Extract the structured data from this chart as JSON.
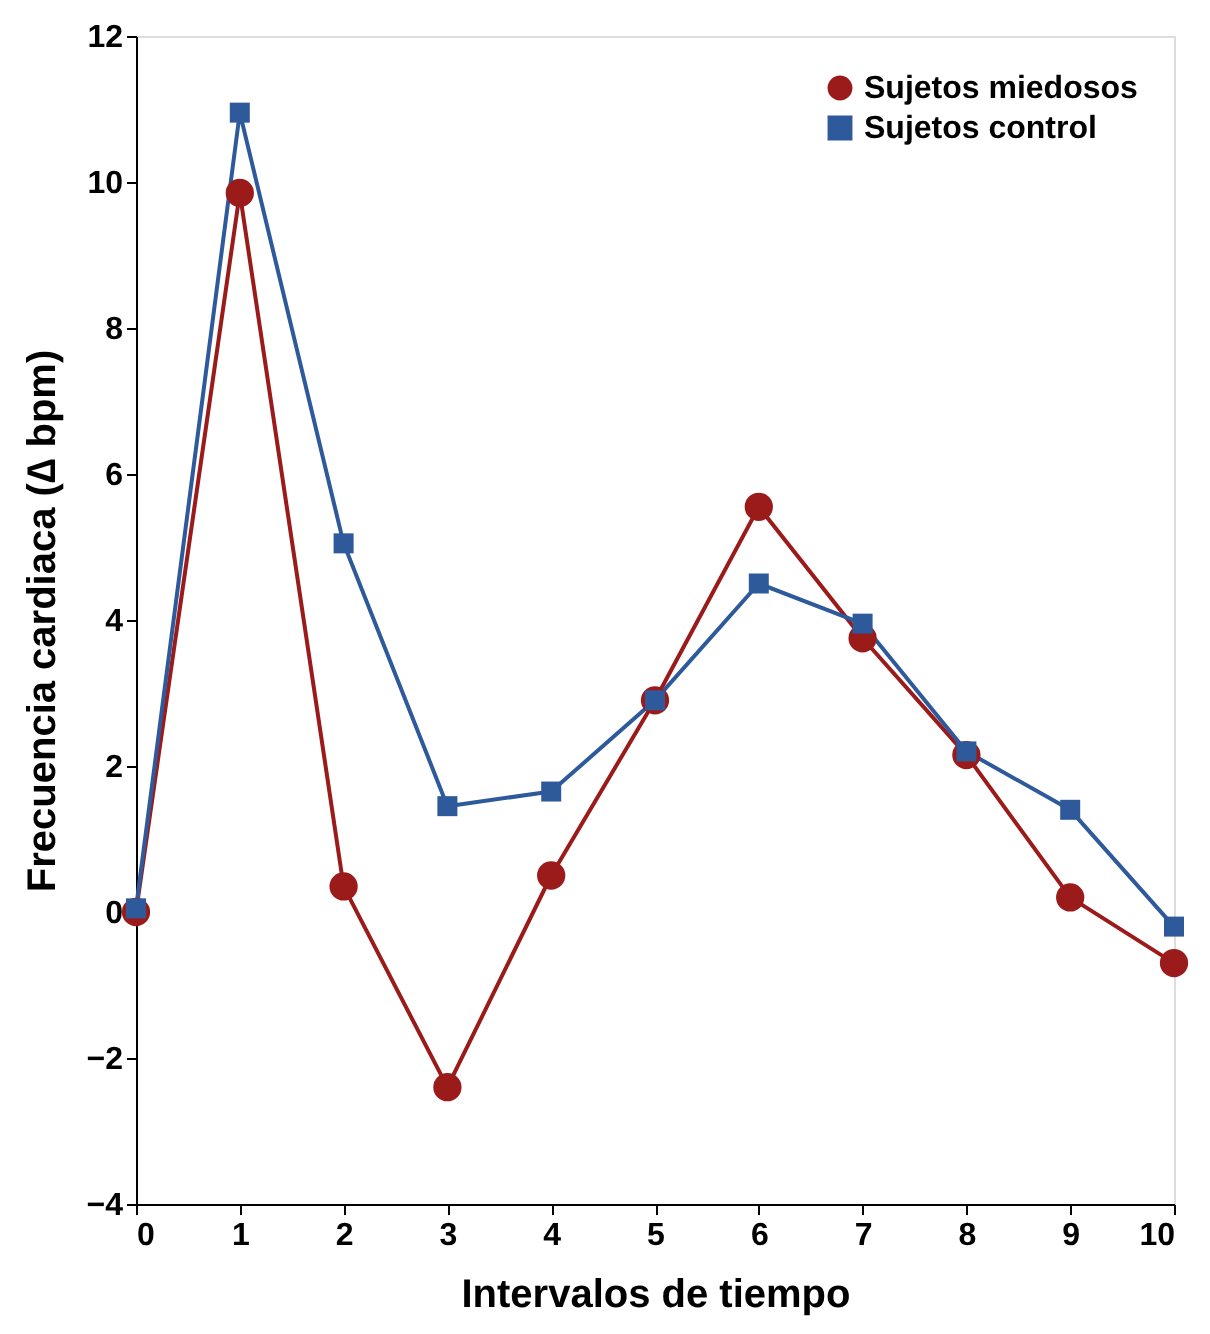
{
  "chart_data": {
    "type": "line",
    "xlabel": "Intervalos de tiempo",
    "ylabel": "Frecuencia cardiaca (∆ bpm)",
    "x": [
      0,
      1,
      2,
      3,
      4,
      5,
      6,
      7,
      8,
      9,
      10
    ],
    "series": [
      {
        "name": "Sujetos miedosos",
        "color": "#9b1b1b",
        "marker": "circle",
        "values": [
          0,
          9.85,
          0.35,
          -2.4,
          0.5,
          2.9,
          5.55,
          3.75,
          2.15,
          0.2,
          -0.7
        ]
      },
      {
        "name": "Sujetos control",
        "color": "#2e5a9c",
        "marker": "square",
        "values": [
          0.05,
          10.95,
          5.05,
          1.45,
          1.65,
          2.9,
          4.5,
          3.95,
          2.2,
          1.4,
          -0.2
        ]
      }
    ],
    "xlim": [
      0,
      10
    ],
    "xticks": [
      0,
      1,
      2,
      3,
      4,
      5,
      6,
      7,
      8,
      9,
      10
    ],
    "ylim": [
      -4,
      12
    ],
    "yticks": [
      -4,
      -2,
      0,
      2,
      4,
      6,
      8,
      10,
      12
    ],
    "grid": false,
    "legend": "top right",
    "line_style": "solid"
  }
}
